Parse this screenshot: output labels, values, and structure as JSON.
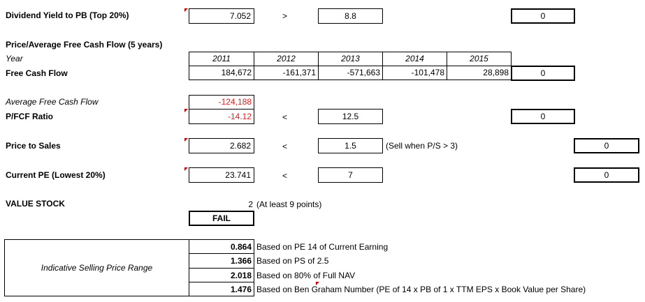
{
  "dividend_yield": {
    "label": "Dividend Yield to PB (Top 20%)",
    "value": "7.052",
    "operator": ">",
    "threshold": "8.8",
    "score": "0"
  },
  "fcf_section": {
    "title": "Price/Average Free Cash Flow (5 years)",
    "year_label": "Year",
    "years": [
      "2011",
      "2012",
      "2013",
      "2014",
      "2015"
    ],
    "fcf_label": "Free Cash Flow",
    "fcf_values": [
      "184,672",
      "-161,371",
      "-571,663",
      "-101,478",
      "28,898"
    ],
    "fcf_score": "0",
    "avg_label": "Average Free Cash Flow",
    "avg_value": "-124,188",
    "pfcf_label": "P/FCF Ratio",
    "pfcf_value": "-14.12",
    "pfcf_operator": "<",
    "pfcf_threshold": "12.5",
    "pfcf_score": "0"
  },
  "price_to_sales": {
    "label": "Price to Sales",
    "value": "2.682",
    "operator": "<",
    "threshold": "1.5",
    "note": "(Sell when P/S > 3)",
    "score": "0"
  },
  "current_pe": {
    "label": "Current PE (Lowest 20%)",
    "value": "23.741",
    "operator": "<",
    "threshold": "7",
    "score": "0"
  },
  "value_stock": {
    "label": "VALUE STOCK",
    "points": "2",
    "note": "(At least 9 points)",
    "result": "FAIL"
  },
  "selling_price": {
    "label": "Indicative Selling Price Range",
    "rows": [
      {
        "value": "0.864",
        "desc": "Based on PE 14 of Current Earning"
      },
      {
        "value": "1.366",
        "desc": "Based on PS of 2.5"
      },
      {
        "value": "2.018",
        "desc": "Based on 80% of Full NAV"
      },
      {
        "value": "1.476",
        "desc": "Based on Ben Graham Number (PE of 14 x PB of 1 x TTM EPS x Book Value per Share)"
      }
    ]
  },
  "colors": {
    "negative": "#e02020",
    "comment_marker": "#c00000"
  }
}
